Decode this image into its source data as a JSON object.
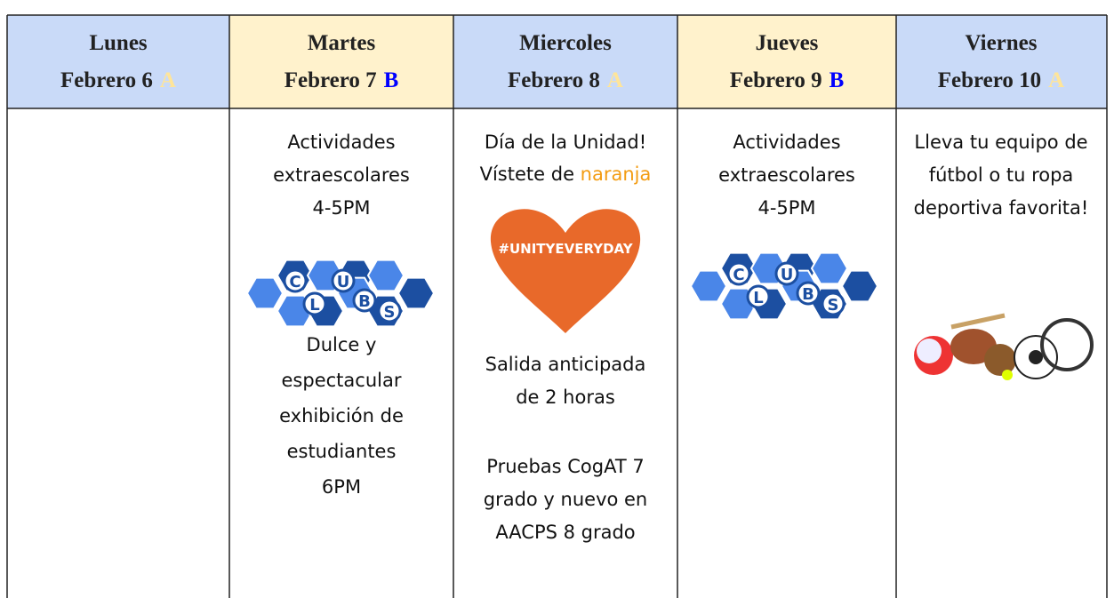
{
  "header": {
    "days": [
      {
        "day": "Lunes",
        "date": "Febrero 6",
        "letter": "A"
      },
      {
        "day": "Martes",
        "date": "Febrero 7",
        "letter": "B"
      },
      {
        "day": "Miercoles",
        "date": "Febrero 8",
        "letter": "A"
      },
      {
        "day": "Jueves",
        "date": "Febrero 9",
        "letter": "B"
      },
      {
        "day": "Viernes",
        "date": "Febrero 10",
        "letter": "A"
      }
    ]
  },
  "body": {
    "martes": {
      "text1": [
        "Actividades",
        "extraescolares",
        "4-5PM"
      ],
      "logo": [
        "C",
        "L",
        "U",
        "B",
        "S"
      ],
      "text2": [
        "Dulce y",
        "espectacular",
        "exhibición de",
        "estudiantes",
        "6PM"
      ]
    },
    "miercoles": {
      "text1": [
        "Día de la Unidad!"
      ],
      "line2": [
        "Vístete de ",
        "naranja"
      ],
      "heart": "#UNITYEVERYDAY",
      "text2": [
        "Salida anticipada",
        "de 2 horas"
      ],
      "text3": [
        "Pruebas CogAT 7",
        "grado y nuevo en",
        "AACPS 8 grado"
      ]
    },
    "jueves": {
      "text1": [
        "Actividades",
        "extraescolares",
        "4-5PM"
      ],
      "logo": [
        "C",
        "L",
        "U",
        "B",
        "S"
      ]
    },
    "viernes": {
      "text1": [
        "Lleva tu equipo de",
        "fútbol o tu ropa",
        "deportiva favorita!"
      ]
    }
  }
}
